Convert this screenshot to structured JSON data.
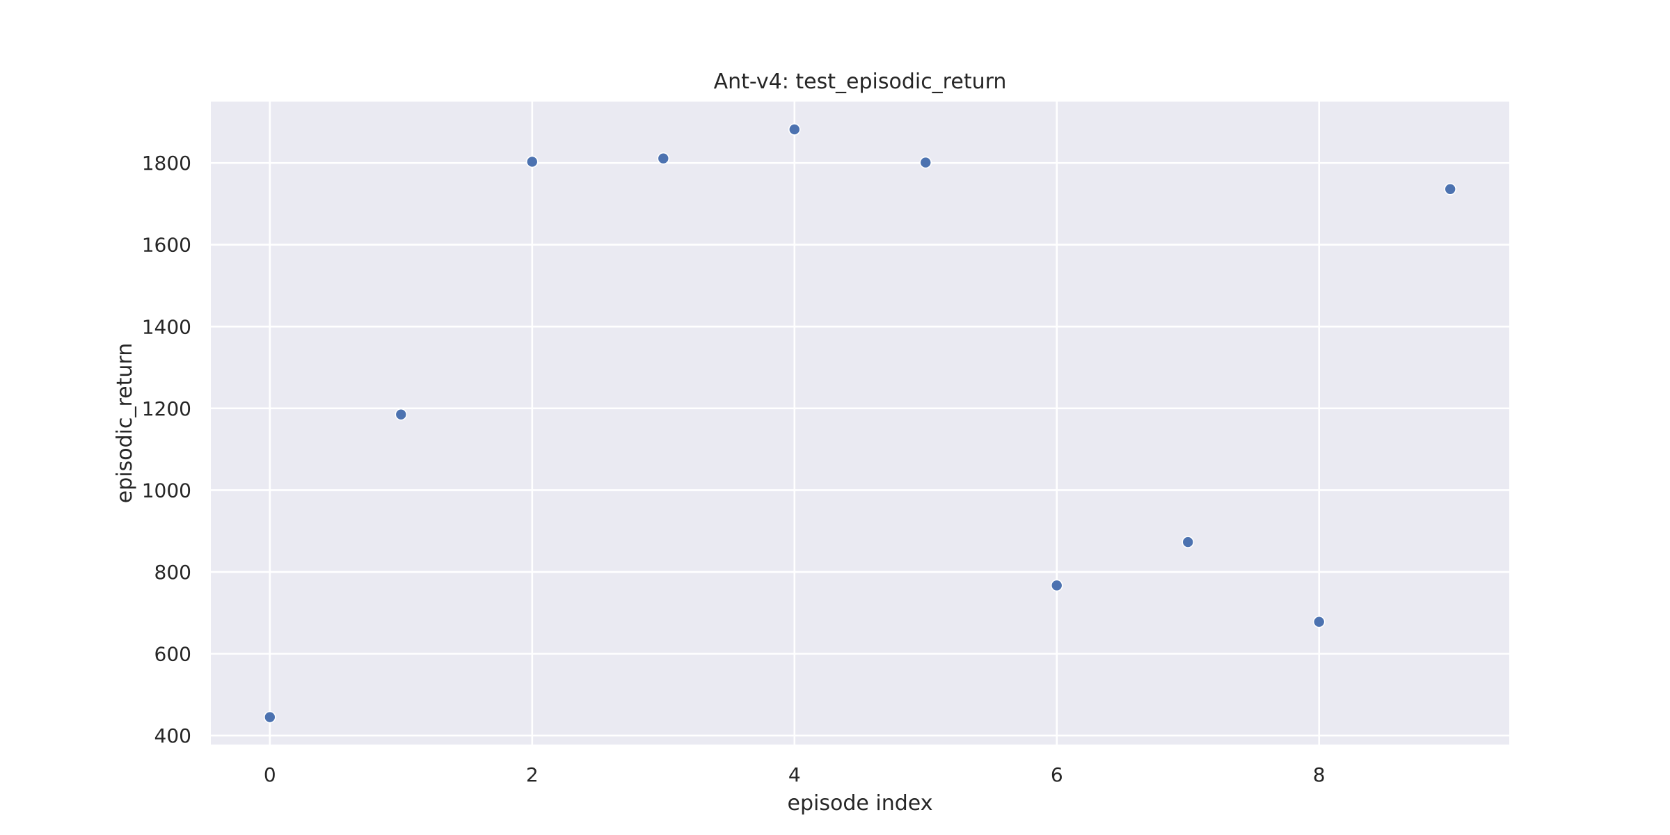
{
  "chart_data": {
    "type": "scatter",
    "title": "Ant-v4: test_episodic_return",
    "xlabel": "episode index",
    "ylabel": "episodic_return",
    "xlim": [
      -0.45,
      9.45
    ],
    "ylim": [
      378,
      1950
    ],
    "x_ticks": [
      0,
      2,
      4,
      6,
      8
    ],
    "y_ticks": [
      400,
      600,
      800,
      1000,
      1200,
      1400,
      1600,
      1800
    ],
    "grid": true,
    "series": [
      {
        "x": [
          0,
          1,
          2,
          3,
          4,
          5,
          6,
          7,
          8,
          9
        ],
        "y": [
          445,
          1185,
          1803,
          1811,
          1882,
          1801,
          767,
          873,
          678,
          1736
        ]
      }
    ],
    "colors": {
      "plot_background": "#eaeaf2",
      "grid": "#ffffff",
      "marker": "#4c72b0",
      "text": "#262626"
    }
  }
}
